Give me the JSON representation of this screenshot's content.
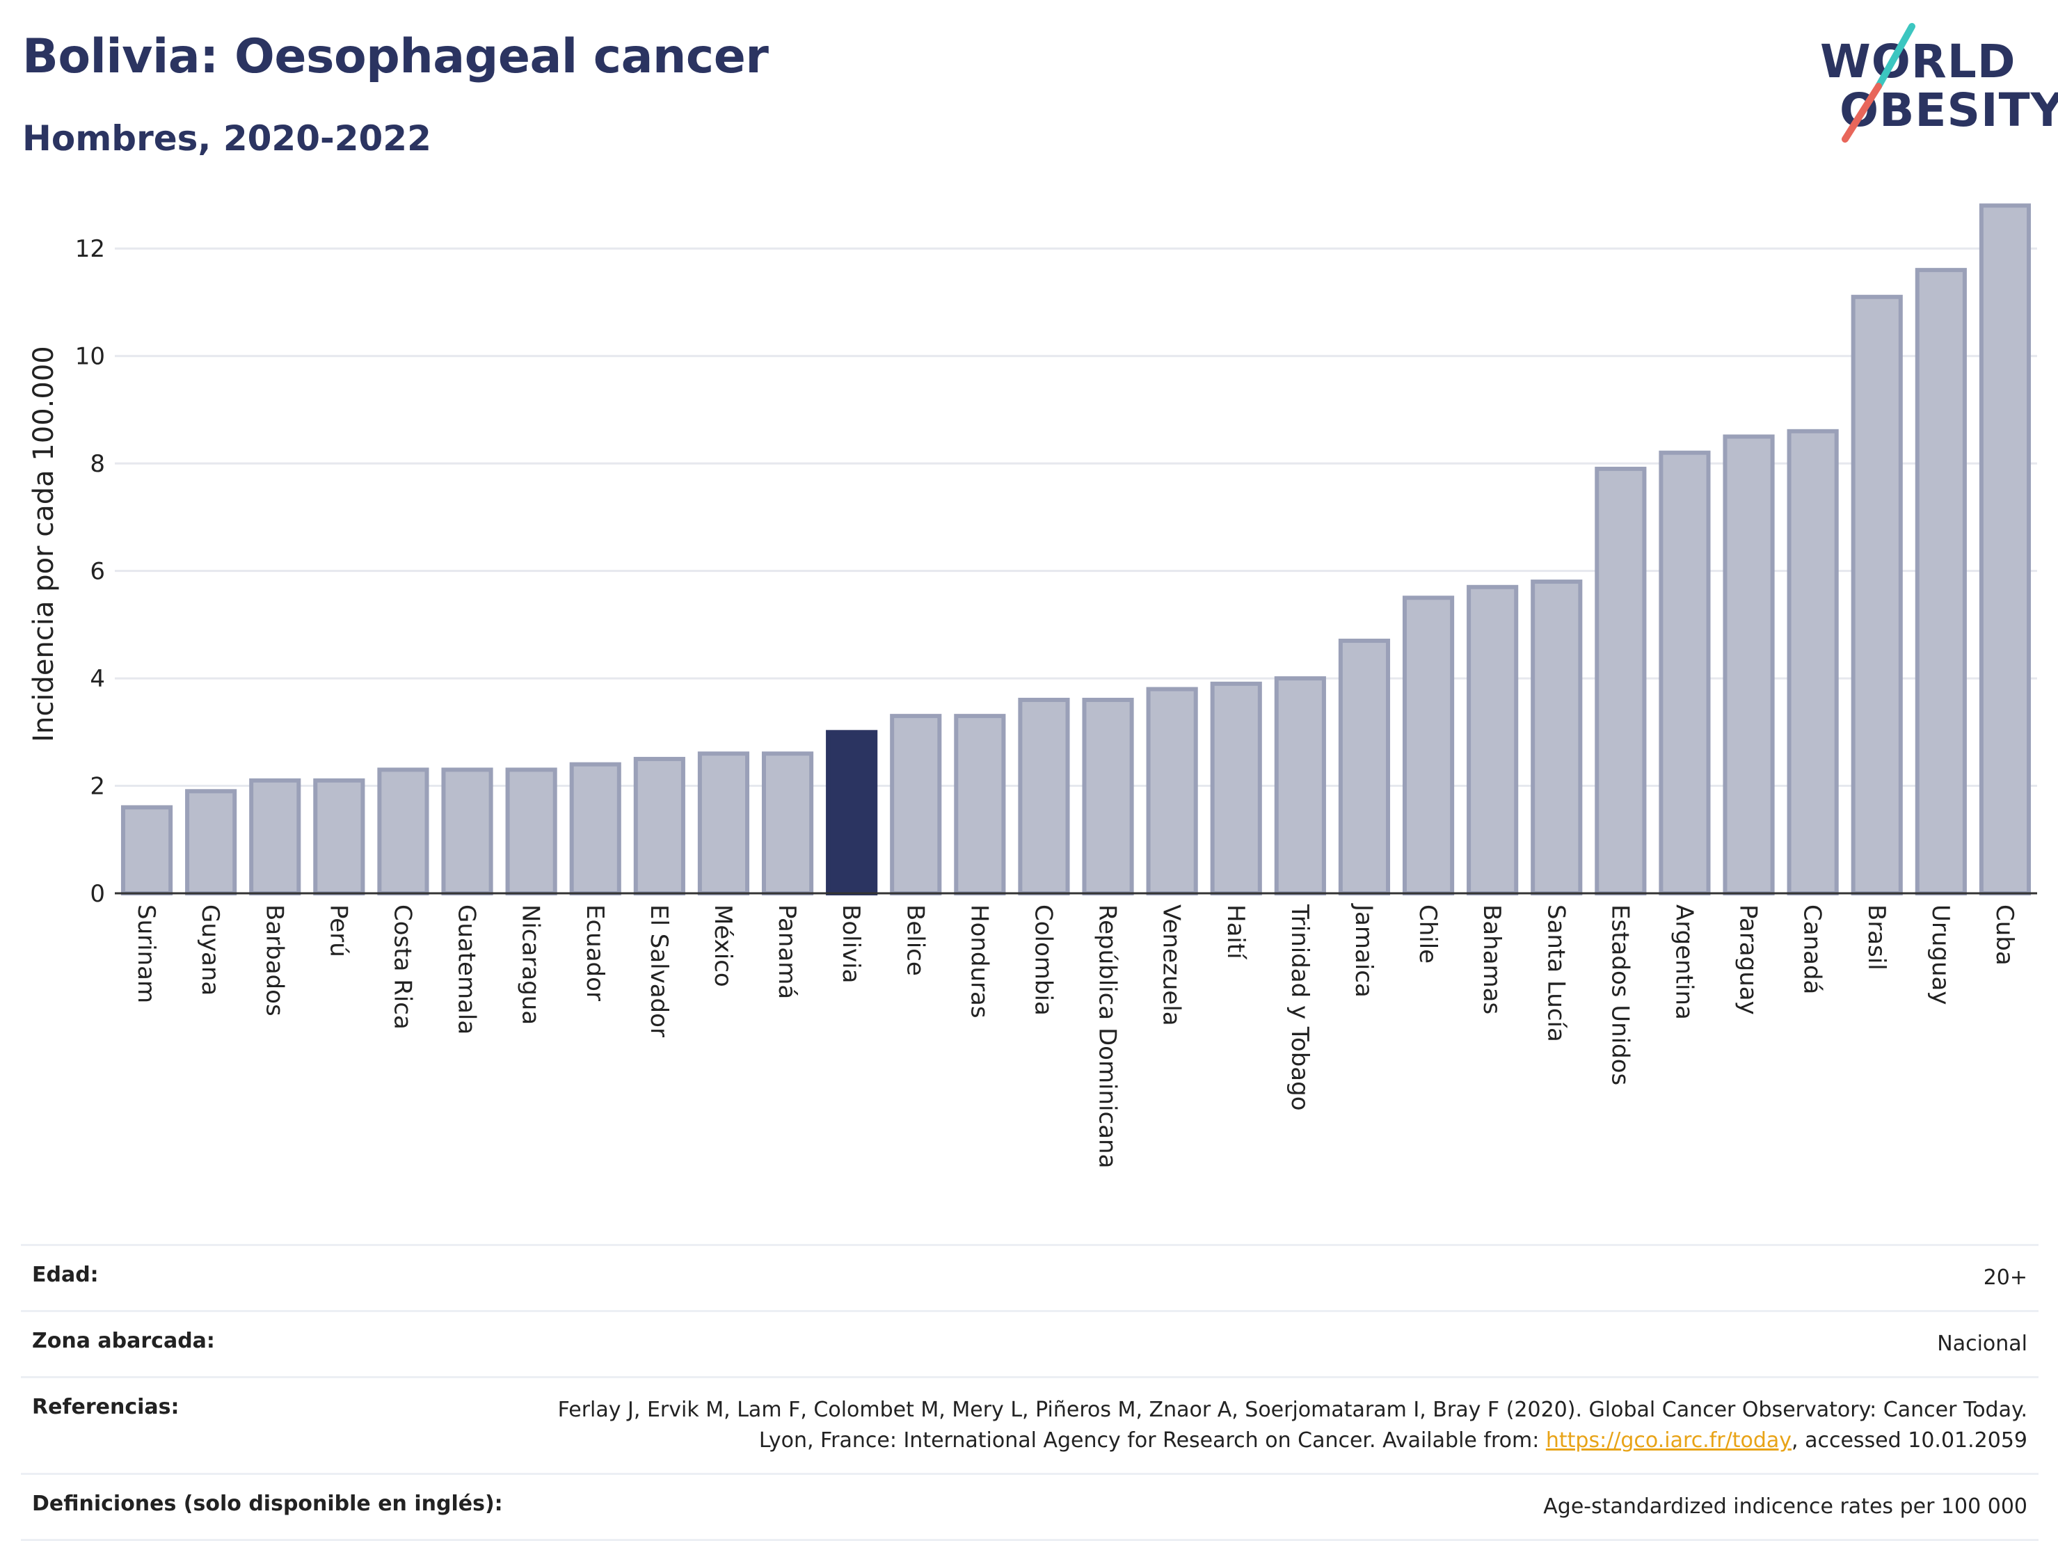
{
  "header": {
    "title": "Bolivia: Oesophageal cancer",
    "subtitle": "Hombres, 2020-2022",
    "logo_line1": "WORLD",
    "logo_line2": "OBESITY"
  },
  "colors": {
    "bar": "#b9bdcc",
    "bar_stroke": "#9aa0b8",
    "highlight": "#2b3461",
    "title": "#2b3461",
    "logo_teal": "#3cc6c0",
    "logo_red": "#e8665a",
    "link": "#e8a317"
  },
  "chart_data": {
    "type": "bar",
    "ylabel": "Incidencia por cada 100.000",
    "xlabel": "",
    "ylim": [
      0,
      13
    ],
    "yticks": [
      0,
      2,
      4,
      6,
      8,
      10,
      12
    ],
    "grid": true,
    "highlight": "Bolivia",
    "categories": [
      "Surinam",
      "Guyana",
      "Barbados",
      "Perú",
      "Costa Rica",
      "Guatemala",
      "Nicaragua",
      "Ecuador",
      "El Salvador",
      "México",
      "Panamá",
      "Bolivia",
      "Belice",
      "Honduras",
      "Colombia",
      "República Dominicana",
      "Venezuela",
      "Haití",
      "Trinidad y Tobago",
      "Jamaica",
      "Chile",
      "Bahamas",
      "Santa Lucía",
      "Estados Unidos",
      "Argentina",
      "Paraguay",
      "Canadá",
      "Brasil",
      "Uruguay",
      "Cuba"
    ],
    "values": [
      1.6,
      1.9,
      2.1,
      2.1,
      2.3,
      2.3,
      2.3,
      2.4,
      2.5,
      2.6,
      2.6,
      3.0,
      3.3,
      3.3,
      3.6,
      3.6,
      3.8,
      3.9,
      4.0,
      4.7,
      5.5,
      5.7,
      5.8,
      7.9,
      8.2,
      8.5,
      8.6,
      11.1,
      11.6,
      12.8
    ]
  },
  "info": {
    "age_label": "Edad:",
    "age_value": "20+",
    "zone_label": "Zona abarcada:",
    "zone_value": "Nacional",
    "refs_label": "Referencias:",
    "refs_text": "Ferlay J, Ervik M, Lam F, Colombet M, Mery L, Piñeros M, Znaor A, Soerjomataram I, Bray F (2020). Global Cancer Observatory: Cancer Today. Lyon, France: International Agency for Research on Cancer. Available from: ",
    "refs_link": "https://gco.iarc.fr/today",
    "refs_tail": ", accessed 10.01.2059",
    "defs_label": "Definiciones (solo disponible en inglés):",
    "defs_value": "Age-standardized indicence rates per 100 000"
  }
}
